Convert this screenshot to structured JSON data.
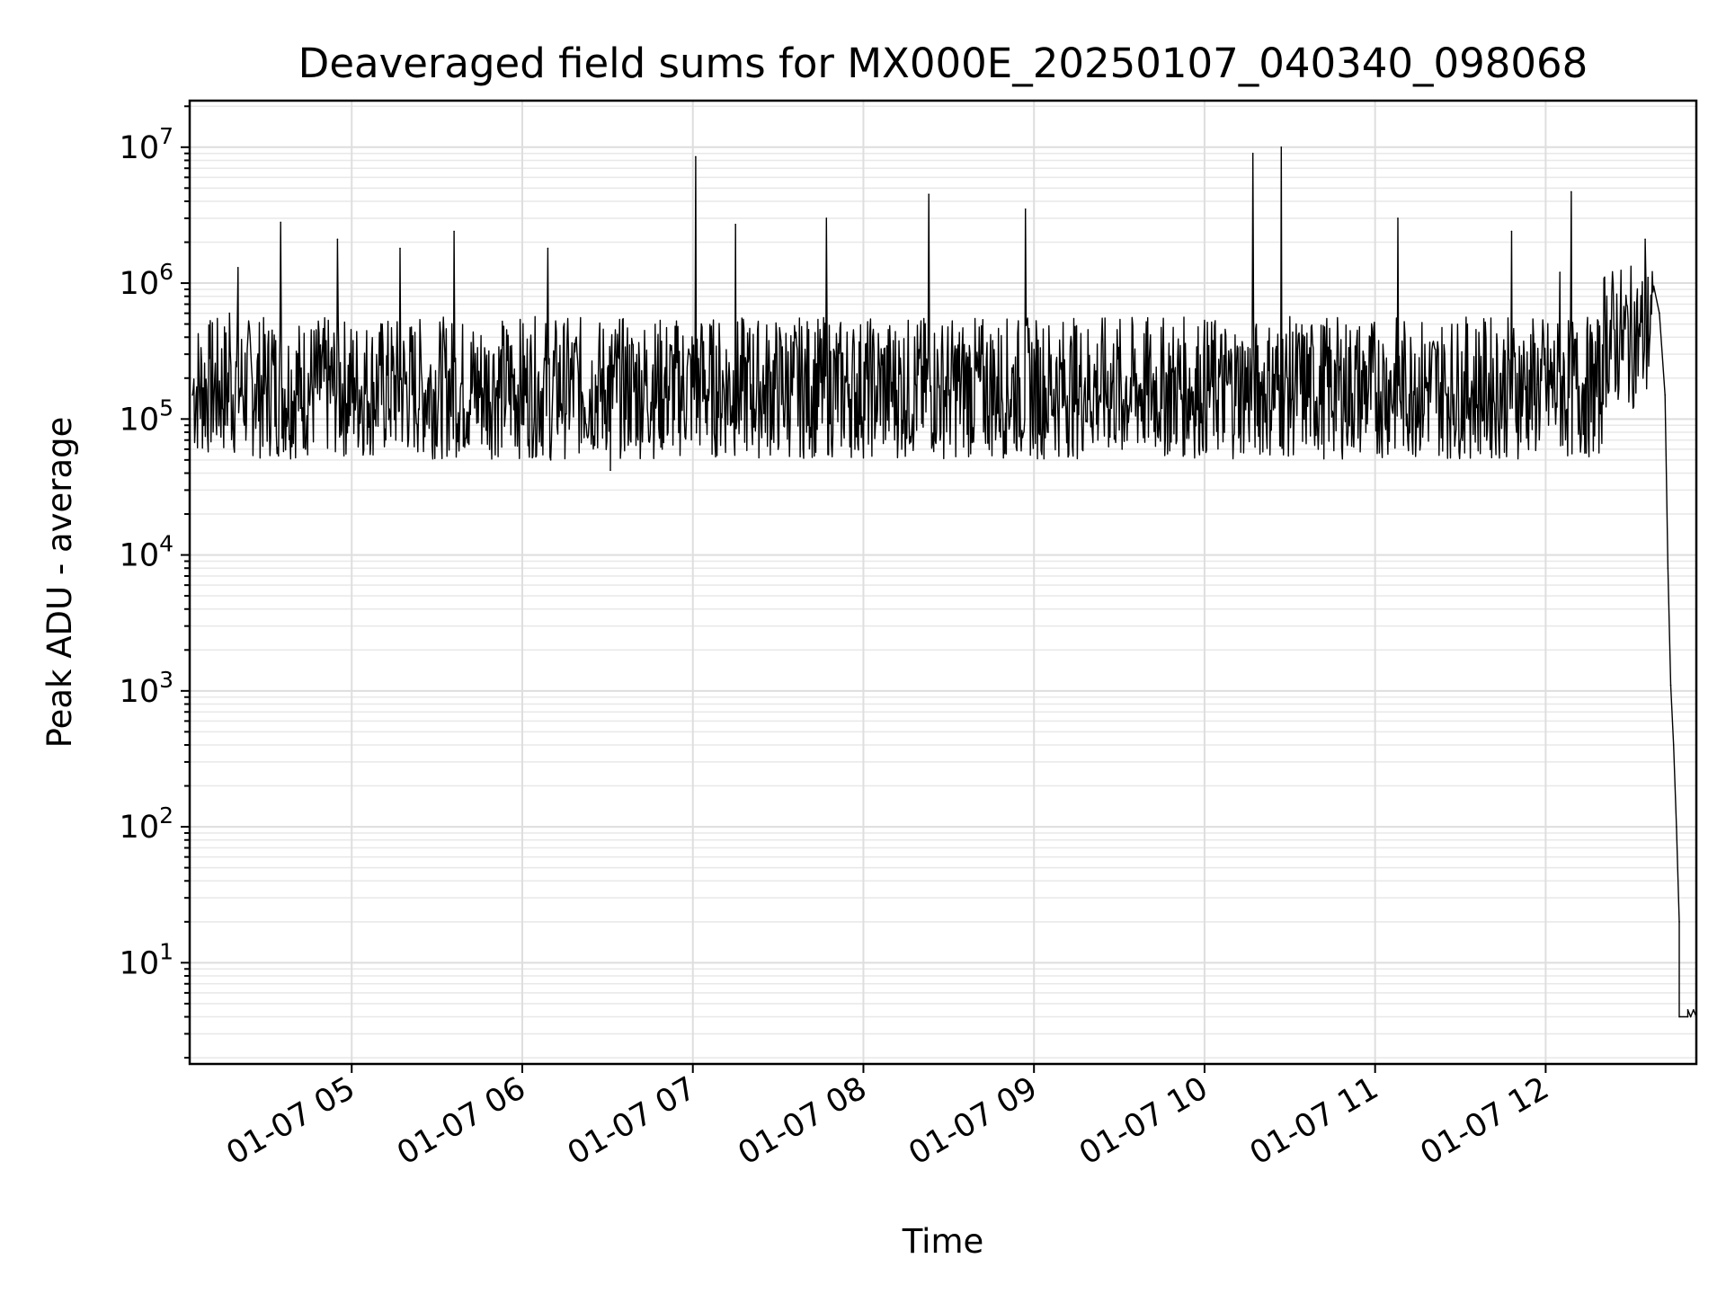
{
  "chart_data": {
    "type": "line",
    "title": "Deaveraged field sums for MX000E_20250107_040340_098068",
    "xlabel": "Time",
    "ylabel": "Peak ADU - average",
    "yscale": "log",
    "ylim": [
      1.8,
      22000000
    ],
    "xlim": [
      "01-07 04:03",
      "01-07 12:53"
    ],
    "grid": true,
    "line_color": "#000000",
    "x_ticks": [
      "01-07 05",
      "01-07 06",
      "01-07 07",
      "01-07 08",
      "01-07 09",
      "01-07 10",
      "01-07 11",
      "01-07 12"
    ],
    "y_ticks": [
      {
        "base": "10",
        "exp": "1",
        "value": 10
      },
      {
        "base": "10",
        "exp": "2",
        "value": 100
      },
      {
        "base": "10",
        "exp": "3",
        "value": 1000
      },
      {
        "base": "10",
        "exp": "4",
        "value": 10000
      },
      {
        "base": "10",
        "exp": "5",
        "value": 100000
      },
      {
        "base": "10",
        "exp": "6",
        "value": 1000000
      },
      {
        "base": "10",
        "exp": "7",
        "value": 10000000
      }
    ],
    "series": [
      {
        "points": [
          [
            "01-07 04:04",
            150000
          ],
          [
            "01-07 04:10",
            280000
          ],
          [
            "01-07 04:17",
            600000
          ],
          [
            "01-07 04:20",
            1300000
          ],
          [
            "01-07 04:26",
            180000
          ],
          [
            "01-07 04:32",
            450000
          ],
          [
            "01-07 04:35",
            2800000
          ],
          [
            "01-07 04:42",
            120000
          ],
          [
            "01-07 04:49",
            350000
          ],
          [
            "01-07 04:55",
            2100000
          ],
          [
            "01-07 05:01",
            200000
          ],
          [
            "01-07 05:10",
            250000
          ],
          [
            "01-07 05:17",
            1800000
          ],
          [
            "01-07 05:25",
            110000
          ],
          [
            "01-07 05:36",
            2400000
          ],
          [
            "01-07 05:50",
            300000
          ],
          [
            "01-07 06:01",
            150000
          ],
          [
            "01-07 06:09",
            1800000
          ],
          [
            "01-07 06:10",
            50000
          ],
          [
            "01-07 06:19",
            400000
          ],
          [
            "01-07 06:31",
            200000
          ],
          [
            "01-07 06:31",
            42000
          ],
          [
            "01-07 06:46",
            250000
          ],
          [
            "01-07 06:59",
            300000
          ],
          [
            "01-07 07:01",
            8500000
          ],
          [
            "01-07 07:03",
            500000
          ],
          [
            "01-07 07:15",
            2700000
          ],
          [
            "01-07 07:25",
            110000
          ],
          [
            "01-07 07:35",
            150000
          ],
          [
            "01-07 07:47",
            3000000
          ],
          [
            "01-07 07:55",
            180000
          ],
          [
            "01-07 08:05",
            120000
          ],
          [
            "01-07 08:23",
            4500000
          ],
          [
            "01-07 08:30",
            150000
          ],
          [
            "01-07 08:50",
            110000
          ],
          [
            "01-07 08:57",
            3500000
          ],
          [
            "01-07 09:05",
            80000
          ],
          [
            "01-07 09:18",
            200000
          ],
          [
            "01-07 09:31",
            60000
          ],
          [
            "01-07 09:45",
            120000
          ],
          [
            "01-07 09:59",
            130000
          ],
          [
            "01-07 10:07",
            80000
          ],
          [
            "01-07 10:17",
            9000000
          ],
          [
            "01-07 10:20",
            150000
          ],
          [
            "01-07 10:27",
            10000000
          ],
          [
            "01-07 10:35",
            100000
          ],
          [
            "01-07 10:46",
            250000
          ],
          [
            "01-07 10:55",
            90000
          ],
          [
            "01-07 11:08",
            3000000
          ],
          [
            "01-07 11:14",
            300000
          ],
          [
            "01-07 11:25",
            150000
          ],
          [
            "01-07 11:35",
            120000
          ],
          [
            "01-07 11:48",
            2400000
          ],
          [
            "01-07 11:57",
            180000
          ],
          [
            "01-07 12:05",
            1200000
          ],
          [
            "01-07 12:09",
            4700000
          ],
          [
            "01-07 12:14",
            200000
          ],
          [
            "01-07 12:20",
            350000
          ],
          [
            "01-07 12:27",
            450000
          ],
          [
            "01-07 12:33",
            500000
          ],
          [
            "01-07 12:35",
            2100000
          ],
          [
            "01-07 12:36",
            1100000
          ],
          [
            "01-07 12:38",
            950000
          ],
          [
            "01-07 12:40",
            600000
          ],
          [
            "01-07 12:42",
            150000
          ],
          [
            "01-07 12:43",
            8000
          ],
          [
            "01-07 12:44",
            1100
          ],
          [
            "01-07 12:45",
            400
          ],
          [
            "01-07 12:46",
            100
          ],
          [
            "01-07 12:47",
            20
          ],
          [
            "01-07 12:47",
            4
          ],
          [
            "01-07 12:50",
            4
          ],
          [
            "01-07 12:50",
            4.5
          ],
          [
            "01-07 12:51",
            4
          ],
          [
            "01-07 12:52",
            4.5
          ],
          [
            "01-07 12:53",
            4
          ]
        ]
      }
    ]
  }
}
